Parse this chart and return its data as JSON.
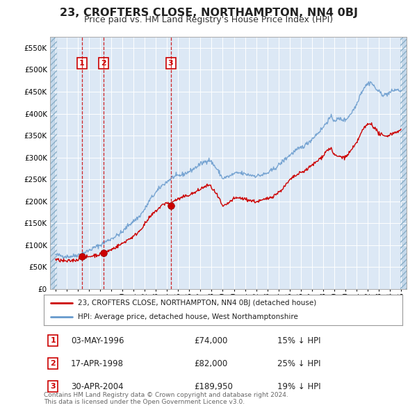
{
  "title": "23, CROFTERS CLOSE, NORTHAMPTON, NN4 0BJ",
  "subtitle": "Price paid vs. HM Land Registry's House Price Index (HPI)",
  "title_fontsize": 11.5,
  "subtitle_fontsize": 9,
  "background_color": "#ffffff",
  "plot_bg_color": "#dce8f5",
  "hatch_color": "#b8cce0",
  "grid_color": "#ffffff",
  "sale_line_color": "#cc0000",
  "hpi_line_color": "#6699cc",
  "sale_marker_color": "#cc0000",
  "vline_color": "#cc0000",
  "ylim": [
    0,
    575000
  ],
  "yticks": [
    0,
    50000,
    100000,
    150000,
    200000,
    250000,
    300000,
    350000,
    400000,
    450000,
    500000,
    550000
  ],
  "sales": [
    {
      "date_num": 1996.37,
      "price": 74000,
      "label": "1"
    },
    {
      "date_num": 1998.29,
      "price": 82000,
      "label": "2"
    },
    {
      "date_num": 2004.33,
      "price": 189950,
      "label": "3"
    }
  ],
  "legend_sale_label": "23, CROFTERS CLOSE, NORTHAMPTON, NN4 0BJ (detached house)",
  "legend_hpi_label": "HPI: Average price, detached house, West Northamptonshire",
  "table_rows": [
    {
      "num": "1",
      "date": "03-MAY-1996",
      "price": "£74,000",
      "note": "15% ↓ HPI"
    },
    {
      "num": "2",
      "date": "17-APR-1998",
      "price": "£82,000",
      "note": "25% ↓ HPI"
    },
    {
      "num": "3",
      "date": "30-APR-2004",
      "price": "£189,950",
      "note": "19% ↓ HPI"
    }
  ],
  "footer": "Contains HM Land Registry data © Crown copyright and database right 2024.\nThis data is licensed under the Open Government Licence v3.0."
}
